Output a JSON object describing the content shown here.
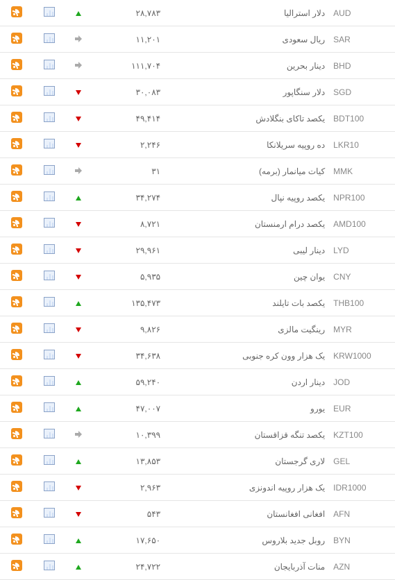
{
  "table": {
    "type": "table",
    "background_color": "#ffffff",
    "border_color": "#e5e5e5",
    "text_color": "#666666",
    "columns": [
      "code",
      "name",
      "value",
      "trend",
      "chart",
      "rss"
    ],
    "trend_colors": {
      "up": "#1fa81f",
      "down": "#d40000",
      "flat": "#aaaaaa"
    },
    "rows": [
      {
        "code": "AUD",
        "name": "دلار استرالیا",
        "value": "۲۸,۷۸۳",
        "trend": "up"
      },
      {
        "code": "SAR",
        "name": "ریال سعودی",
        "value": "۱۱,۲۰۱",
        "trend": "flat"
      },
      {
        "code": "BHD",
        "name": "دینار بحرین",
        "value": "۱۱۱,۷۰۴",
        "trend": "flat"
      },
      {
        "code": "SGD",
        "name": "دلار سنگاپور",
        "value": "۳۰,۰۸۳",
        "trend": "down"
      },
      {
        "code": "BDT100",
        "name": "یکصد تاکای بنگلادش",
        "value": "۴۹,۴۱۴",
        "trend": "down"
      },
      {
        "code": "LKR10",
        "name": "ده روپیه سریلانکا",
        "value": "۲,۲۴۶",
        "trend": "down"
      },
      {
        "code": "MMK",
        "name": "کیات میانمار (برمه)",
        "value": "۳۱",
        "trend": "flat"
      },
      {
        "code": "NPR100",
        "name": "یکصد روپیه نپال",
        "value": "۳۴,۲۷۴",
        "trend": "up"
      },
      {
        "code": "AMD100",
        "name": "یکصد درام ارمنستان",
        "value": "۸,۷۲۱",
        "trend": "down"
      },
      {
        "code": "LYD",
        "name": "دینار لیبی",
        "value": "۲۹,۹۶۱",
        "trend": "down"
      },
      {
        "code": "CNY",
        "name": "یوان چین",
        "value": "۵,۹۳۵",
        "trend": "down"
      },
      {
        "code": "THB100",
        "name": "یکصد بات تایلند",
        "value": "۱۳۵,۴۷۳",
        "trend": "up"
      },
      {
        "code": "MYR",
        "name": "رینگیت مالزی",
        "value": "۹,۸۲۶",
        "trend": "down"
      },
      {
        "code": "KRW1000",
        "name": "یک هزار وون کره جنوبی",
        "value": "۳۴,۶۳۸",
        "trend": "down"
      },
      {
        "code": "JOD",
        "name": "دینار اردن",
        "value": "۵۹,۲۴۰",
        "trend": "up"
      },
      {
        "code": "EUR",
        "name": "یورو",
        "value": "۴۷,۰۰۷",
        "trend": "up"
      },
      {
        "code": "KZT100",
        "name": "یکصد تنگه قزاقستان",
        "value": "۱۰,۳۹۹",
        "trend": "flat"
      },
      {
        "code": "GEL",
        "name": "لاری گرجستان",
        "value": "۱۳,۸۵۳",
        "trend": "up"
      },
      {
        "code": "IDR1000",
        "name": "یک هزار روپیه اندونزی",
        "value": "۲,۹۶۳",
        "trend": "down"
      },
      {
        "code": "AFN",
        "name": "افغانی افغانستان",
        "value": "۵۴۳",
        "trend": "down"
      },
      {
        "code": "BYN",
        "name": "روبل جدید بلاروس",
        "value": "۱۷,۶۵۰",
        "trend": "up"
      },
      {
        "code": "AZN",
        "name": "منات آذربایجان",
        "value": "۲۴,۷۲۲",
        "trend": "up"
      }
    ]
  }
}
